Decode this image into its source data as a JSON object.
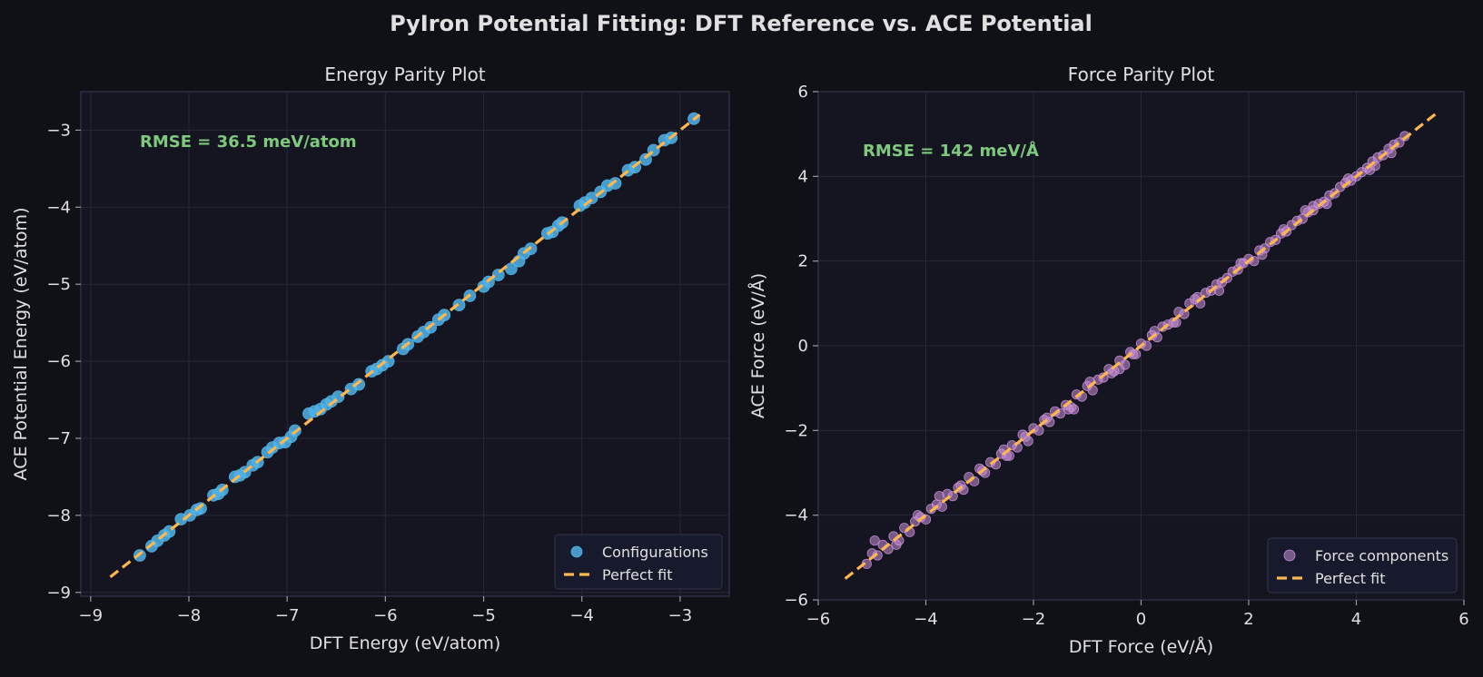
{
  "figure": {
    "title": "PyIron Potential Fitting: DFT Reference vs. ACE Potential",
    "colors": {
      "background": "#0f1117",
      "axes_bg": "#141521",
      "grid": "#262838",
      "spine": "#33364a",
      "text": "#e0e0e0",
      "annotation": "#7fc97f",
      "fit_line": "#ffb74d",
      "energy_points": "#4fb3e8",
      "force_points": "#c98fd8"
    }
  },
  "chart_data": [
    {
      "type": "scatter",
      "title": "Energy Parity Plot",
      "xlabel": "DFT Energy (eV/atom)",
      "ylabel": "ACE Potential Energy (eV/atom)",
      "xlim": [
        -9.1,
        -2.5
      ],
      "ylim": [
        -9.05,
        -2.5
      ],
      "xticks": [
        -9,
        -8,
        -7,
        -6,
        -5,
        -4,
        -3
      ],
      "yticks": [
        -9,
        -8,
        -7,
        -6,
        -5,
        -4,
        -3
      ],
      "xtick_labels": [
        "−9",
        "−8",
        "−7",
        "−6",
        "−5",
        "−4",
        "−3"
      ],
      "ytick_labels": [
        "−9",
        "−8",
        "−7",
        "−6",
        "−5",
        "−4",
        "−3"
      ],
      "grid": true,
      "annotation": "RMSE = 36.5 meV/atom",
      "legend_position": "lower-right",
      "series": [
        {
          "name": "Configurations",
          "kind": "points",
          "x": [
            -8.5,
            -8.38,
            -8.32,
            -8.25,
            -8.2,
            -8.08,
            -7.99,
            -7.92,
            -7.88,
            -7.75,
            -7.7,
            -7.66,
            -7.53,
            -7.48,
            -7.43,
            -7.35,
            -7.3,
            -7.2,
            -7.15,
            -7.08,
            -7.02,
            -6.96,
            -6.92,
            -6.78,
            -6.72,
            -6.66,
            -6.6,
            -6.55,
            -6.48,
            -6.35,
            -6.27,
            -6.14,
            -6.09,
            -6.03,
            -5.97,
            -5.82,
            -5.77,
            -5.67,
            -5.61,
            -5.54,
            -5.46,
            -5.4,
            -5.25,
            -5.14,
            -5.0,
            -4.95,
            -4.85,
            -4.72,
            -4.64,
            -4.59,
            -4.52,
            -4.35,
            -4.3,
            -4.24,
            -4.2,
            -4.02,
            -3.97,
            -3.9,
            -3.81,
            -3.74,
            -3.66,
            -3.53,
            -3.46,
            -3.35,
            -3.27,
            -3.16,
            -3.09,
            -2.86
          ],
          "y": [
            -8.52,
            -8.4,
            -8.33,
            -8.26,
            -8.21,
            -8.05,
            -8.0,
            -7.93,
            -7.91,
            -7.74,
            -7.72,
            -7.67,
            -7.5,
            -7.48,
            -7.44,
            -7.35,
            -7.31,
            -7.18,
            -7.12,
            -7.06,
            -7.05,
            -6.98,
            -6.9,
            -6.68,
            -6.65,
            -6.62,
            -6.56,
            -6.52,
            -6.46,
            -6.36,
            -6.3,
            -6.13,
            -6.1,
            -6.05,
            -6.0,
            -5.84,
            -5.78,
            -5.68,
            -5.62,
            -5.56,
            -5.46,
            -5.4,
            -5.27,
            -5.15,
            -5.03,
            -4.97,
            -4.88,
            -4.8,
            -4.7,
            -4.6,
            -4.54,
            -4.34,
            -4.32,
            -4.24,
            -4.2,
            -3.98,
            -3.94,
            -3.88,
            -3.8,
            -3.72,
            -3.69,
            -3.52,
            -3.48,
            -3.38,
            -3.26,
            -3.13,
            -3.1,
            -2.85
          ]
        },
        {
          "name": "Perfect fit",
          "kind": "line",
          "x": [
            -8.8,
            -2.8
          ],
          "y": [
            -8.8,
            -2.8
          ]
        }
      ]
    },
    {
      "type": "scatter",
      "title": "Force Parity Plot",
      "xlabel": "DFT Force (eV/Å)",
      "ylabel": "ACE Force (eV/Å)",
      "xlim": [
        -6,
        6
      ],
      "ylim": [
        -6,
        6
      ],
      "xticks": [
        -6,
        -4,
        -2,
        0,
        2,
        4,
        6
      ],
      "yticks": [
        -6,
        -4,
        -2,
        0,
        2,
        4,
        6
      ],
      "xtick_labels": [
        "−6",
        "−4",
        "−2",
        "0",
        "2",
        "4",
        "6"
      ],
      "ytick_labels": [
        "−6",
        "−4",
        "−2",
        "0",
        "2",
        "4",
        "6"
      ],
      "grid": true,
      "annotation": "RMSE = 142 meV/Å",
      "legend_position": "lower-right",
      "series": [
        {
          "name": "Force components",
          "kind": "points",
          "x": [
            -5.1,
            -5.0,
            -4.9,
            -4.8,
            -4.7,
            -4.6,
            -4.5,
            -4.4,
            -4.3,
            -4.2,
            -4.1,
            -4.0,
            -3.9,
            -3.8,
            -3.7,
            -3.6,
            -3.5,
            -3.4,
            -3.3,
            -3.2,
            -3.1,
            -3.0,
            -2.9,
            -2.8,
            -2.7,
            -2.6,
            -2.5,
            -2.4,
            -2.3,
            -2.2,
            -2.1,
            -2.0,
            -1.9,
            -1.8,
            -1.7,
            -1.6,
            -1.5,
            -1.4,
            -1.3,
            -1.2,
            -1.1,
            -1.0,
            -0.9,
            -0.8,
            -0.7,
            -0.6,
            -0.5,
            -0.4,
            -0.3,
            -0.2,
            -0.1,
            0.0,
            0.1,
            0.2,
            0.3,
            0.4,
            0.5,
            0.6,
            0.7,
            0.8,
            0.9,
            1.0,
            1.1,
            1.2,
            1.3,
            1.4,
            1.5,
            1.6,
            1.7,
            1.8,
            1.9,
            2.0,
            2.1,
            2.2,
            2.3,
            2.4,
            2.5,
            2.6,
            2.7,
            2.8,
            2.9,
            3.0,
            3.1,
            3.2,
            3.3,
            3.4,
            3.5,
            3.6,
            3.7,
            3.8,
            3.9,
            4.0,
            4.1,
            4.2,
            4.3,
            4.4,
            4.5,
            4.6,
            4.7,
            4.8,
            4.9,
            -4.95,
            -4.55,
            -4.15,
            -3.75,
            -3.35,
            -2.95,
            -2.55,
            -2.15,
            -1.75,
            -1.35,
            -0.95,
            -0.55,
            -0.15,
            0.25,
            0.65,
            1.05,
            1.45,
            1.85,
            2.25,
            2.65,
            3.05,
            3.45,
            3.85,
            4.25,
            4.65,
            -2.45,
            -1.25,
            -0.4,
            3.2,
            4.35
          ],
          "y": [
            -5.15,
            -4.9,
            -4.95,
            -4.7,
            -4.8,
            -4.5,
            -4.6,
            -4.3,
            -4.4,
            -4.15,
            -4.05,
            -4.1,
            -3.85,
            -3.75,
            -3.8,
            -3.5,
            -3.55,
            -3.35,
            -3.4,
            -3.1,
            -3.2,
            -2.9,
            -3.0,
            -2.75,
            -2.8,
            -2.55,
            -2.6,
            -2.35,
            -2.4,
            -2.1,
            -2.25,
            -1.95,
            -2.0,
            -1.75,
            -1.8,
            -1.55,
            -1.6,
            -1.4,
            -1.45,
            -1.15,
            -1.2,
            -0.95,
            -1.05,
            -0.8,
            -0.75,
            -0.55,
            -0.6,
            -0.35,
            -0.45,
            -0.15,
            -0.2,
            0.05,
            0.0,
            0.25,
            0.2,
            0.45,
            0.5,
            0.55,
            0.8,
            0.75,
            1.0,
            1.1,
            1.0,
            1.25,
            1.3,
            1.45,
            1.5,
            1.6,
            1.75,
            1.8,
            1.95,
            2.05,
            2.0,
            2.25,
            2.3,
            2.45,
            2.5,
            2.65,
            2.7,
            2.85,
            2.95,
            3.0,
            3.15,
            3.2,
            3.35,
            3.4,
            3.55,
            3.6,
            3.75,
            3.85,
            3.9,
            4.0,
            4.1,
            4.2,
            4.35,
            4.45,
            4.5,
            4.65,
            4.75,
            4.8,
            4.95,
            -4.6,
            -4.7,
            -4.0,
            -3.55,
            -3.3,
            -2.95,
            -2.45,
            -2.15,
            -1.7,
            -1.5,
            -0.85,
            -0.65,
            -0.2,
            0.35,
            0.55,
            1.15,
            1.3,
            1.95,
            2.15,
            2.75,
            3.2,
            3.35,
            3.95,
            4.15,
            4.55,
            -2.6,
            -1.5,
            -0.55,
            3.3,
            4.25
          ]
        },
        {
          "name": "Perfect fit",
          "kind": "line",
          "x": [
            -5.5,
            5.5
          ],
          "y": [
            -5.5,
            5.5
          ]
        }
      ]
    }
  ]
}
